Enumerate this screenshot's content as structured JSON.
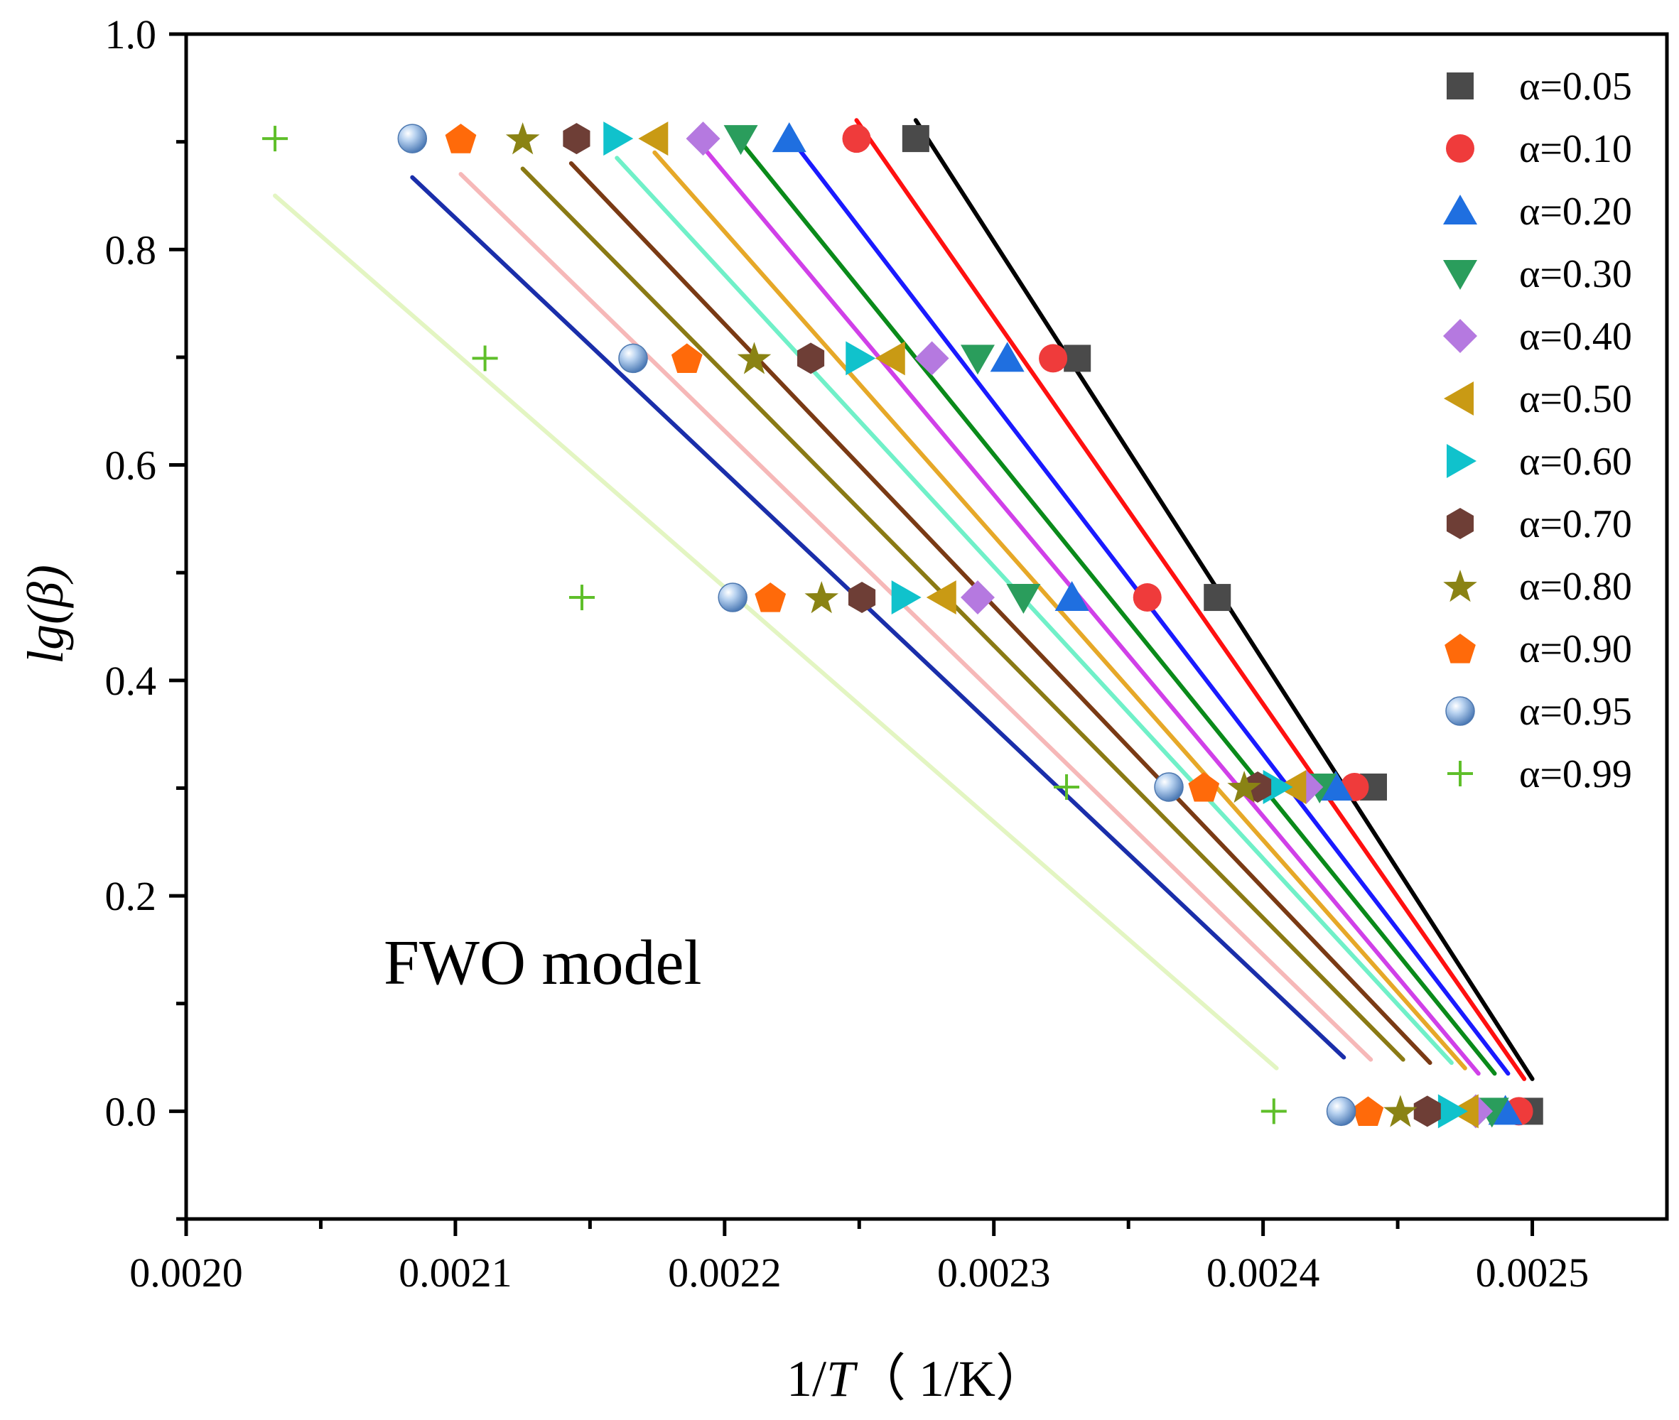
{
  "chart_data": {
    "type": "scatter",
    "xlabel_main": "1/",
    "xlabel_var": "T",
    "xlabel_unit": "（  1/K）",
    "ylabel_prefix": "lg",
    "ylabel_var": "(β)",
    "annotation": "FWO model",
    "xlim": [
      0.002,
      0.00255
    ],
    "ylim": [
      -0.1,
      1.0
    ],
    "x_ticks": [
      "0.0020",
      "0.0021",
      "0.0022",
      "0.0023",
      "0.0024",
      "0.0025"
    ],
    "y_ticks": [
      "0.0",
      "0.2",
      "0.4",
      "0.6",
      "0.8",
      "1.0"
    ],
    "grid": false,
    "legend_position": "top-right",
    "series": [
      {
        "name": "α=0.05",
        "marker": "square",
        "color": "#4a4a4a",
        "fit_color": "#000000",
        "points": [
          [
            0.002271,
            0.903
          ],
          [
            0.002331,
            0.699
          ],
          [
            0.002383,
            0.477
          ],
          [
            0.002441,
            0.301
          ],
          [
            0.002499,
            0.0
          ]
        ],
        "fit": [
          [
            0.002271,
            0.92
          ],
          [
            0.0025,
            0.03
          ]
        ]
      },
      {
        "name": "α=0.10",
        "marker": "circle",
        "color": "#ef3b3b",
        "fit_color": "#ff1010",
        "points": [
          [
            0.002249,
            0.903
          ],
          [
            0.002322,
            0.699
          ],
          [
            0.002357,
            0.477
          ],
          [
            0.002434,
            0.301
          ],
          [
            0.002495,
            0.0
          ]
        ],
        "fit": [
          [
            0.002249,
            0.92
          ],
          [
            0.002497,
            0.03
          ]
        ]
      },
      {
        "name": "α=0.20",
        "marker": "triangle-up",
        "color": "#1f6fe0",
        "fit_color": "#1a1aff",
        "points": [
          [
            0.002224,
            0.903
          ],
          [
            0.002305,
            0.699
          ],
          [
            0.002329,
            0.477
          ],
          [
            0.002427,
            0.301
          ],
          [
            0.00249,
            0.0
          ]
        ],
        "fit": [
          [
            0.002224,
            0.905
          ],
          [
            0.002491,
            0.035
          ]
        ]
      },
      {
        "name": "α=0.30",
        "marker": "triangle-down",
        "color": "#2a9d5c",
        "fit_color": "#0a8a1a",
        "points": [
          [
            0.002206,
            0.903
          ],
          [
            0.002294,
            0.699
          ],
          [
            0.002311,
            0.477
          ],
          [
            0.002421,
            0.301
          ],
          [
            0.002485,
            0.0
          ]
        ],
        "fit": [
          [
            0.002206,
            0.9
          ],
          [
            0.002486,
            0.035
          ]
        ]
      },
      {
        "name": "α=0.40",
        "marker": "diamond",
        "color": "#b579e0",
        "fit_color": "#d040e8",
        "points": [
          [
            0.002192,
            0.903
          ],
          [
            0.002277,
            0.699
          ],
          [
            0.002294,
            0.477
          ],
          [
            0.002416,
            0.301
          ],
          [
            0.002479,
            0.0
          ]
        ],
        "fit": [
          [
            0.002192,
            0.895
          ],
          [
            0.00248,
            0.035
          ]
        ]
      },
      {
        "name": "α=0.50",
        "marker": "triangle-left",
        "color": "#c99a14",
        "fit_color": "#e6a828",
        "points": [
          [
            0.002174,
            0.903
          ],
          [
            0.002262,
            0.699
          ],
          [
            0.002281,
            0.477
          ],
          [
            0.002411,
            0.301
          ],
          [
            0.002475,
            0.0
          ]
        ],
        "fit": [
          [
            0.002174,
            0.89
          ],
          [
            0.002475,
            0.04
          ]
        ]
      },
      {
        "name": "α=0.60",
        "marker": "triangle-right",
        "color": "#10c2cc",
        "fit_color": "#70f0c8",
        "points": [
          [
            0.00216,
            0.903
          ],
          [
            0.00225,
            0.699
          ],
          [
            0.002267,
            0.477
          ],
          [
            0.002405,
            0.301
          ],
          [
            0.00247,
            0.0
          ]
        ],
        "fit": [
          [
            0.00216,
            0.885
          ],
          [
            0.00247,
            0.045
          ]
        ]
      },
      {
        "name": "α=0.70",
        "marker": "hexagon",
        "color": "#6e3e36",
        "fit_color": "#7a3a14",
        "points": [
          [
            0.002145,
            0.903
          ],
          [
            0.002232,
            0.699
          ],
          [
            0.002251,
            0.477
          ],
          [
            0.002398,
            0.301
          ],
          [
            0.002461,
            0.0
          ]
        ],
        "fit": [
          [
            0.002143,
            0.88
          ],
          [
            0.002462,
            0.045
          ]
        ]
      },
      {
        "name": "α=0.80",
        "marker": "star",
        "color": "#8a8314",
        "fit_color": "#8a7a14",
        "points": [
          [
            0.002125,
            0.903
          ],
          [
            0.002211,
            0.699
          ],
          [
            0.002236,
            0.477
          ],
          [
            0.002393,
            0.301
          ],
          [
            0.002451,
            0.0
          ]
        ],
        "fit": [
          [
            0.002125,
            0.875
          ],
          [
            0.002452,
            0.048
          ]
        ]
      },
      {
        "name": "α=0.90",
        "marker": "pentagon",
        "color": "#ff6a0a",
        "fit_color": "#f6b8b8",
        "points": [
          [
            0.002102,
            0.903
          ],
          [
            0.002186,
            0.699
          ],
          [
            0.002217,
            0.477
          ],
          [
            0.002378,
            0.301
          ],
          [
            0.002439,
            0.0
          ]
        ],
        "fit": [
          [
            0.002102,
            0.87
          ],
          [
            0.00244,
            0.048
          ]
        ]
      },
      {
        "name": "α=0.95",
        "marker": "sphere",
        "color": "#6a9ad4",
        "fit_color": "#1a2eaa",
        "points": [
          [
            0.002084,
            0.903
          ],
          [
            0.002166,
            0.699
          ],
          [
            0.002203,
            0.477
          ],
          [
            0.002365,
            0.301
          ],
          [
            0.002429,
            0.0
          ]
        ],
        "fit": [
          [
            0.002084,
            0.867
          ],
          [
            0.00243,
            0.05
          ]
        ]
      },
      {
        "name": "α=0.99",
        "marker": "plus",
        "color": "#5fbf2a",
        "fit_color": "#e3f5c2",
        "points": [
          [
            0.002033,
            0.903
          ],
          [
            0.002111,
            0.699
          ],
          [
            0.002147,
            0.477
          ],
          [
            0.002327,
            0.301
          ],
          [
            0.002404,
            0.0
          ]
        ],
        "fit": [
          [
            0.002033,
            0.85
          ],
          [
            0.002405,
            0.04
          ]
        ]
      }
    ]
  }
}
